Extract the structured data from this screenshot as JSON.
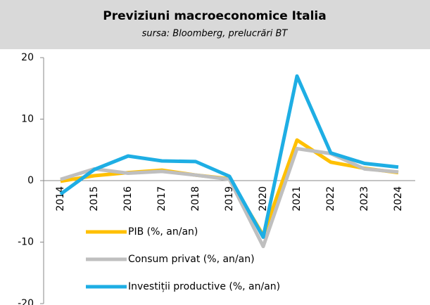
{
  "chart_data": {
    "type": "line",
    "title": "Previziuni macroeconomice Italia",
    "subtitle": "sursa: Bloomberg, prelucrări BT",
    "categories": [
      "2014",
      "2015",
      "2016",
      "2017",
      "2018",
      "2019",
      "2020",
      "2021",
      "2022",
      "2023",
      "2024"
    ],
    "series": [
      {
        "name": "PIB (%, an/an)",
        "color": "#FFC000",
        "values": [
          -0.1,
          0.8,
          1.3,
          1.7,
          0.9,
          0.3,
          -8.9,
          6.6,
          3.0,
          2.0,
          1.3
        ]
      },
      {
        "name": "Consum privat (%, an/an)",
        "color": "#BFBFBF",
        "values": [
          0.2,
          1.9,
          1.2,
          1.5,
          0.9,
          0.2,
          -10.7,
          5.2,
          4.4,
          1.9,
          1.4
        ]
      },
      {
        "name": "Investiții productive (%, an/an)",
        "color": "#1EAEE4",
        "values": [
          -2.2,
          1.8,
          4.0,
          3.2,
          3.1,
          0.7,
          -9.2,
          17.0,
          4.5,
          2.8,
          2.2
        ]
      }
    ],
    "ylim": [
      -20,
      20
    ],
    "yticks": [
      -20,
      -10,
      0,
      10,
      20
    ],
    "legend": "lower left"
  }
}
